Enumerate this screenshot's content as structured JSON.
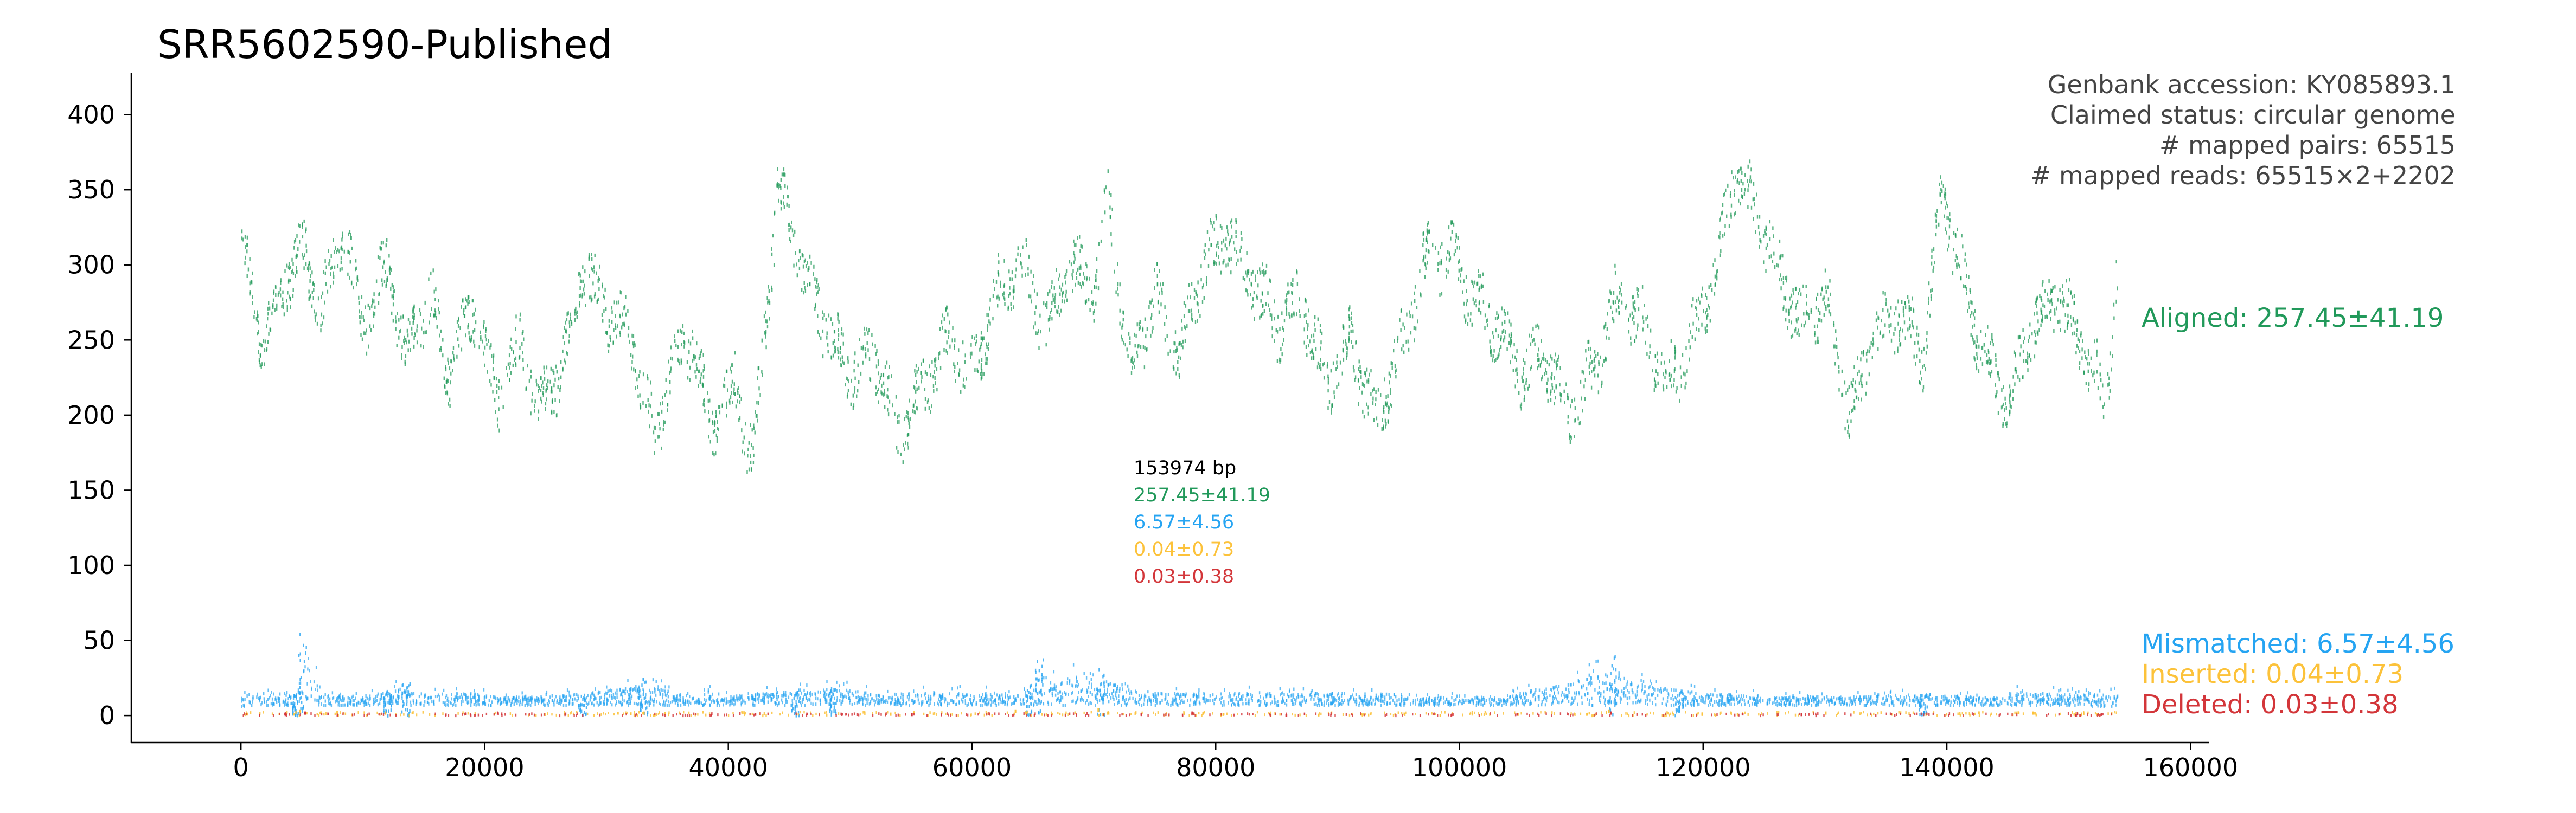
{
  "chart_data": {
    "type": "scatter",
    "title": "SRR5602590-Published",
    "xlabel": "",
    "ylabel": "",
    "xlim": [
      -9000,
      161500
    ],
    "ylim": [
      -18,
      428
    ],
    "x_ticks": [
      0,
      20000,
      40000,
      60000,
      80000,
      100000,
      120000,
      140000,
      160000
    ],
    "y_ticks": [
      0,
      50,
      100,
      150,
      200,
      250,
      300,
      350,
      400
    ],
    "x_tick_labels": [
      "0",
      "20000",
      "40000",
      "60000",
      "80000",
      "100000",
      "120000",
      "140000",
      "160000"
    ],
    "y_tick_labels": [
      "0",
      "50",
      "100",
      "150",
      "200",
      "250",
      "300",
      "350",
      "400"
    ],
    "genome_length_bp": 153974,
    "info_lines": [
      "Genbank accession: KY085893.1",
      "Claimed status: circular genome",
      "# mapped pairs: 65515",
      "# mapped reads: 65515×2+2202"
    ],
    "summary_block": {
      "length": "153974 bp",
      "aligned": "257.45±41.19",
      "mismatched": "6.57±4.56",
      "inserted": "0.04±0.73",
      "deleted": "0.03±0.38"
    },
    "series": [
      {
        "name": "Aligned",
        "label": "Aligned: 257.45±41.19",
        "color": "#21995a",
        "mean": 257.45,
        "std": 41.19,
        "x": [
          0,
          1500,
          3500,
          5000,
          6500,
          8500,
          10000,
          12000,
          13500,
          15500,
          17000,
          19000,
          21000,
          23000,
          24500,
          26500,
          28000,
          30000,
          32000,
          34000,
          35000,
          37000,
          38500,
          40500,
          42000,
          44000,
          46000,
          48000,
          50000,
          52000,
          54000,
          56000,
          58000,
          60000,
          62000,
          64000,
          66000,
          68000,
          70000,
          71000,
          73000,
          75000,
          77000,
          79000,
          81000,
          83000,
          85000,
          87000,
          89000,
          91000,
          93000,
          95000,
          97000,
          99000,
          101000,
          103000,
          105000,
          107000,
          109000,
          111000,
          113000,
          115000,
          117000,
          119000,
          121000,
          122500,
          124000,
          126000,
          128000,
          130000,
          132000,
          134000,
          136000,
          138000,
          139500,
          141000,
          143000,
          145000,
          147000,
          149000,
          151000,
          153000,
          153974
        ],
        "y": [
          320,
          250,
          290,
          310,
          270,
          320,
          260,
          300,
          240,
          280,
          230,
          270,
          210,
          250,
          200,
          240,
          300,
          270,
          250,
          180,
          230,
          250,
          190,
          220,
          170,
          350,
          300,
          260,
          230,
          240,
          185,
          220,
          250,
          230,
          280,
          300,
          260,
          300,
          280,
          350,
          230,
          280,
          240,
          300,
          320,
          290,
          260,
          280,
          220,
          250,
          200,
          240,
          300,
          310,
          280,
          260,
          230,
          240,
          200,
          230,
          280,
          260,
          220,
          250,
          300,
          360,
          340,
          300,
          260,
          280,
          200,
          250,
          270,
          240,
          350,
          300,
          240,
          210,
          260,
          280,
          250,
          210,
          300
        ]
      },
      {
        "name": "Mismatched",
        "label": "Mismatched: 6.57±4.56",
        "color": "#25a4f2",
        "mean": 6.57,
        "std": 4.56,
        "x": [
          0,
          2500,
          4500,
          5000,
          7000,
          9500,
          12000,
          13500,
          16000,
          21000,
          28000,
          33000,
          38000,
          45500,
          48500,
          55000,
          63000,
          64500,
          65500,
          70500,
          75000,
          85000,
          100000,
          104000,
          112500,
          118000,
          126000,
          134000,
          138000,
          146000,
          153974
        ],
        "y": [
          6,
          8,
          14,
          55,
          12,
          10,
          18,
          22,
          8,
          9,
          14,
          25,
          8,
          18,
          22,
          7,
          8,
          20,
          38,
          32,
          8,
          7,
          10,
          12,
          40,
          18,
          10,
          12,
          14,
          8,
          6
        ]
      },
      {
        "name": "Inserted",
        "label": "Inserted: 0.04±0.73",
        "color": "#fcc23a",
        "mean": 0.04,
        "std": 0.73,
        "x": [
          4800,
          11800,
          33000,
          63500,
          70300,
          112200,
          130000,
          147000
        ],
        "y": [
          3,
          2,
          2,
          3,
          4,
          3,
          2,
          2
        ]
      },
      {
        "name": "Deleted",
        "label": "Deleted: 0.03±0.38",
        "color": "#d3363a",
        "mean": 0.03,
        "std": 0.38,
        "x": [
          5200,
          21000,
          55000,
          78000,
          112400,
          128000
        ],
        "y": [
          2,
          2,
          1,
          2,
          2,
          1
        ]
      }
    ]
  }
}
